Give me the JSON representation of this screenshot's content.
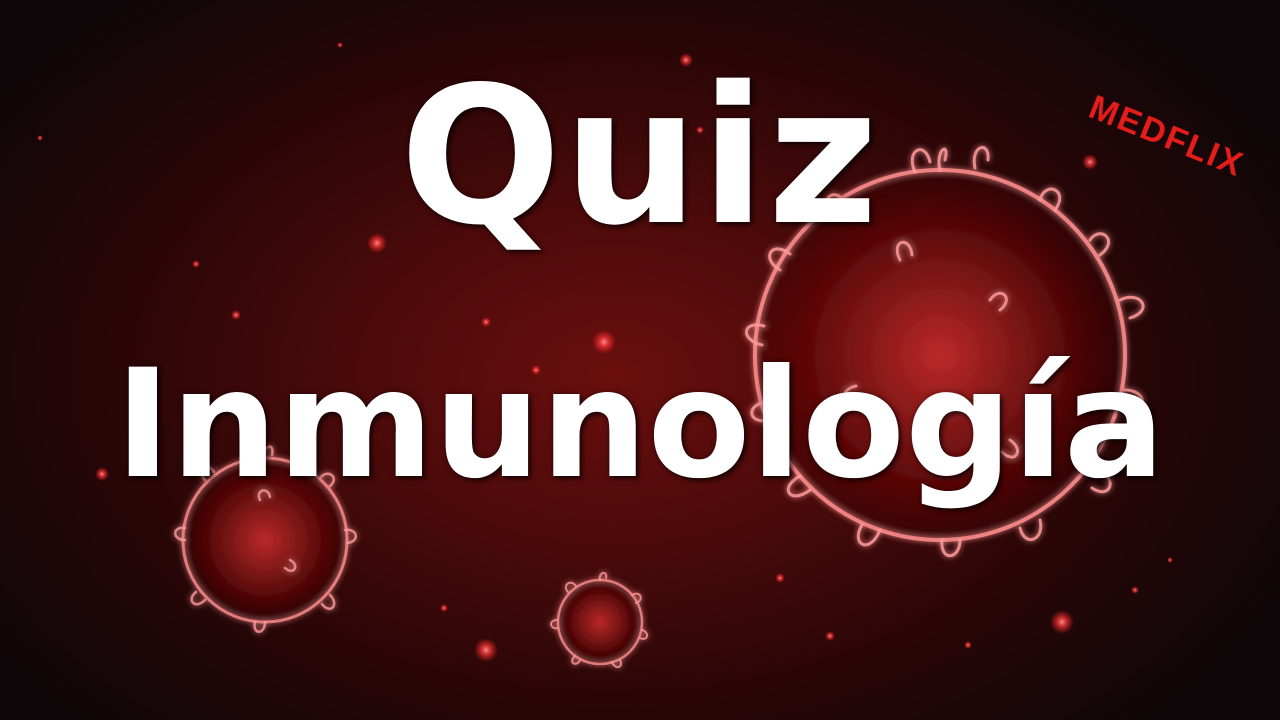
{
  "title": {
    "main": "Quiz",
    "topic": "Inmunología"
  },
  "brand": {
    "name": "MEDFLIX",
    "color": "#e41d1b"
  },
  "colors": {
    "background_center": "#6a0f0e",
    "background_edge": "#0d0709",
    "virus_glow": "#ff6a6a",
    "text": "#ffffff"
  }
}
